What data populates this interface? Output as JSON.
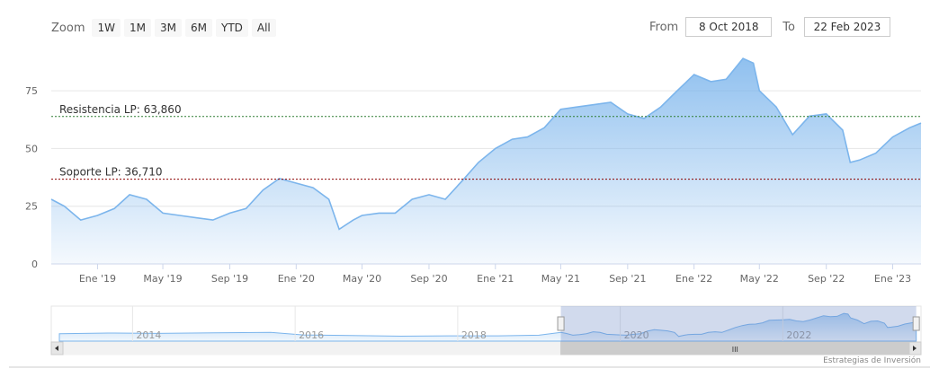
{
  "zoom": {
    "label": "Zoom",
    "buttons": [
      "1W",
      "1M",
      "3M",
      "6M",
      "YTD",
      "All"
    ]
  },
  "range": {
    "from_label": "From",
    "from_value": "8 Oct 2018",
    "to_label": "To",
    "to_value": "22 Feb 2023"
  },
  "credit": "Estrategias de Inversión",
  "colors": {
    "line": "#7cb5ec",
    "resistance": "#2e7d32",
    "support": "#8b0000",
    "navigator": "#6685c2"
  },
  "chart_data": {
    "type": "area",
    "x_ticks": [
      "Ene '19",
      "May '19",
      "Sep '19",
      "Ene '20",
      "May '20",
      "Sep '20",
      "Ene '21",
      "May '21",
      "Sep '21",
      "Ene '22",
      "May '22",
      "Sep '22",
      "Ene '23"
    ],
    "x_tick_dates": [
      "2019-01-01",
      "2019-05-01",
      "2019-09-01",
      "2020-01-01",
      "2020-05-01",
      "2020-09-01",
      "2021-01-01",
      "2021-05-01",
      "2021-09-01",
      "2022-01-01",
      "2022-05-01",
      "2022-09-01",
      "2023-01-01"
    ],
    "y_ticks": [
      0,
      25,
      50,
      75
    ],
    "ylim": [
      0,
      91
    ],
    "xlim": [
      "2018-10-08",
      "2023-02-22"
    ],
    "series": [
      {
        "x": [
          "2018-10-08",
          "2018-11-01",
          "2018-12-01",
          "2019-01-01",
          "2019-02-01",
          "2019-03-01",
          "2019-04-01",
          "2019-05-01",
          "2019-06-01",
          "2019-07-01",
          "2019-08-01",
          "2019-09-01",
          "2019-10-01",
          "2019-11-01",
          "2019-12-01",
          "2020-01-01",
          "2020-02-01",
          "2020-03-01",
          "2020-03-20",
          "2020-04-15",
          "2020-05-01",
          "2020-06-01",
          "2020-07-01",
          "2020-08-01",
          "2020-09-01",
          "2020-10-01",
          "2020-11-01",
          "2020-12-01",
          "2021-01-01",
          "2021-02-01",
          "2021-03-01",
          "2021-04-01",
          "2021-05-01",
          "2021-06-01",
          "2021-07-01",
          "2021-08-01",
          "2021-09-01",
          "2021-10-01",
          "2021-11-01",
          "2021-12-01",
          "2022-01-01",
          "2022-02-01",
          "2022-03-01",
          "2022-04-01",
          "2022-04-20",
          "2022-05-01",
          "2022-06-01",
          "2022-07-01",
          "2022-08-01",
          "2022-09-01",
          "2022-10-01",
          "2022-10-15",
          "2022-11-01",
          "2022-12-01",
          "2023-01-01",
          "2023-02-01",
          "2023-02-22"
        ],
        "values": [
          28,
          25,
          19,
          21,
          24,
          30,
          28,
          22,
          21,
          20,
          19,
          22,
          24,
          32,
          37,
          35,
          33,
          28,
          15,
          19,
          21,
          22,
          22,
          28,
          30,
          28,
          36,
          44,
          50,
          54,
          55,
          59,
          67,
          68,
          69,
          70,
          65,
          63,
          68,
          75,
          82,
          79,
          80,
          89,
          87,
          75,
          68,
          56,
          64,
          65,
          58,
          44,
          45,
          48,
          55,
          59,
          61
        ]
      }
    ],
    "annotations": [
      {
        "type": "horizontal_line",
        "label": "Resistencia LP: 63,860",
        "value": 63.86
      },
      {
        "type": "horizontal_line",
        "label": "Soporte LP: 36,710",
        "value": 36.71
      }
    ],
    "navigator": {
      "x_ticks": [
        "2014",
        "2016",
        "2018",
        "2020",
        "2022"
      ],
      "tick_years": [
        2014,
        2016,
        2018,
        2020,
        2022
      ],
      "scroll_glyph": "III"
    }
  }
}
